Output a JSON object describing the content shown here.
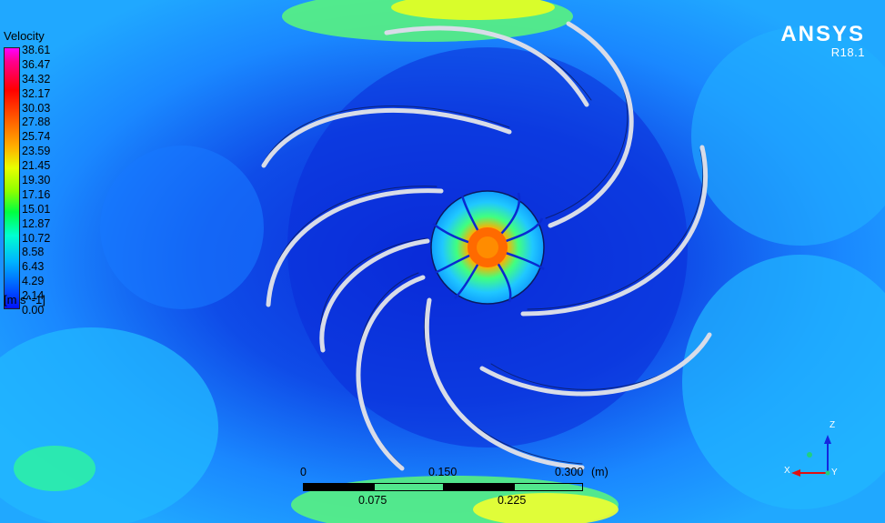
{
  "legend": {
    "title": "Velocity",
    "values": [
      "38.61",
      "36.47",
      "34.32",
      "32.17",
      "30.03",
      "27.88",
      "25.74",
      "23.59",
      "21.45",
      "19.30",
      "17.16",
      "15.01",
      "12.87",
      "10.72",
      "8.58",
      "6.43",
      "4.29",
      "2.14",
      "0.00"
    ],
    "unit": "[m s^-1]"
  },
  "brand": {
    "name": "ANSYS",
    "version": "R18.1"
  },
  "scale": {
    "top_labels": [
      "0",
      "0.150",
      "0.300"
    ],
    "unit": "(m)",
    "bottom_labels": [
      "0.075",
      "0.225"
    ]
  },
  "triad": {
    "z": "Z",
    "x": "X",
    "y": "Y"
  },
  "colors": {
    "background": "#1a66ee",
    "blade": "#d8dce8",
    "hub": "#f07a00"
  }
}
